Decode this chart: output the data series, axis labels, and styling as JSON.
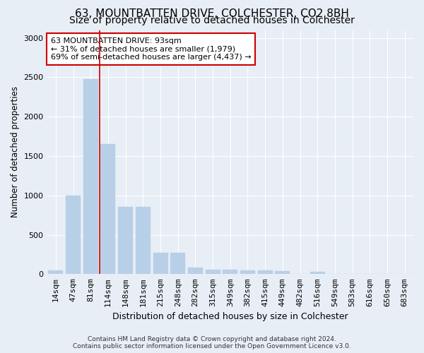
{
  "title": "63, MOUNTBATTEN DRIVE, COLCHESTER, CO2 8BH",
  "subtitle": "Size of property relative to detached houses in Colchester",
  "xlabel": "Distribution of detached houses by size in Colchester",
  "ylabel": "Number of detached properties",
  "categories": [
    "14sqm",
    "47sqm",
    "81sqm",
    "114sqm",
    "148sqm",
    "181sqm",
    "215sqm",
    "248sqm",
    "282sqm",
    "315sqm",
    "349sqm",
    "382sqm",
    "415sqm",
    "449sqm",
    "482sqm",
    "516sqm",
    "549sqm",
    "583sqm",
    "616sqm",
    "650sqm",
    "683sqm"
  ],
  "values": [
    50,
    1000,
    2480,
    1650,
    850,
    850,
    270,
    270,
    80,
    60,
    55,
    50,
    50,
    40,
    0,
    30,
    0,
    0,
    0,
    0,
    0
  ],
  "bar_color": "#b8cfe8",
  "bar_edgecolor": "#b8cfe8",
  "property_line_color": "#cc0000",
  "property_line_xindex": 2,
  "annotation_text": "63 MOUNTBATTEN DRIVE: 93sqm\n← 31% of detached houses are smaller (1,979)\n69% of semi-detached houses are larger (4,437) →",
  "annotation_box_facecolor": "#ffffff",
  "annotation_box_edgecolor": "#cc0000",
  "ylim": [
    0,
    3100
  ],
  "yticks": [
    0,
    500,
    1000,
    1500,
    2000,
    2500,
    3000
  ],
  "background_color": "#e8eef5",
  "grid_color": "#ffffff",
  "footnote": "Contains HM Land Registry data © Crown copyright and database right 2024.\nContains public sector information licensed under the Open Government Licence v3.0.",
  "title_fontsize": 11,
  "subtitle_fontsize": 10,
  "xlabel_fontsize": 9,
  "ylabel_fontsize": 8.5,
  "tick_fontsize": 8,
  "annotation_fontsize": 8
}
